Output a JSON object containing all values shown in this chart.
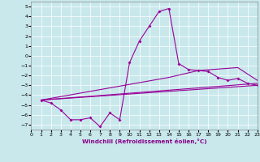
{
  "xlabel": "Windchill (Refroidissement éolien,°C)",
  "background_color": "#c8e8ec",
  "line_color": "#990099",
  "xlim": [
    0,
    23
  ],
  "ylim": [
    -7.5,
    5.5
  ],
  "xticks": [
    0,
    1,
    2,
    3,
    4,
    5,
    6,
    7,
    8,
    9,
    10,
    11,
    12,
    13,
    14,
    15,
    16,
    17,
    18,
    19,
    20,
    21,
    22,
    23
  ],
  "yticks": [
    -7,
    -6,
    -5,
    -4,
    -3,
    -2,
    -1,
    0,
    1,
    2,
    3,
    4,
    5
  ],
  "main_x": [
    1,
    2,
    3,
    4,
    5,
    6,
    7,
    8,
    9,
    10,
    11,
    12,
    13,
    14,
    15,
    16,
    17,
    18,
    19,
    20,
    21,
    22,
    23
  ],
  "main_y": [
    -4.5,
    -4.8,
    -5.5,
    -6.5,
    -6.5,
    -6.3,
    -7.2,
    -5.8,
    -6.5,
    -0.7,
    1.5,
    3.0,
    4.5,
    4.8,
    -0.8,
    -1.4,
    -1.5,
    -1.6,
    -2.2,
    -2.5,
    -2.3,
    -2.8,
    -3.0
  ],
  "line1_x": [
    1,
    23
  ],
  "line1_y": [
    -4.5,
    -3.0
  ],
  "line2_x": [
    1,
    23
  ],
  "line2_y": [
    -4.5,
    -2.8
  ],
  "line3_x": [
    1,
    14,
    17,
    21,
    23
  ],
  "line3_y": [
    -4.5,
    -2.2,
    -1.5,
    -1.2,
    -2.5
  ]
}
